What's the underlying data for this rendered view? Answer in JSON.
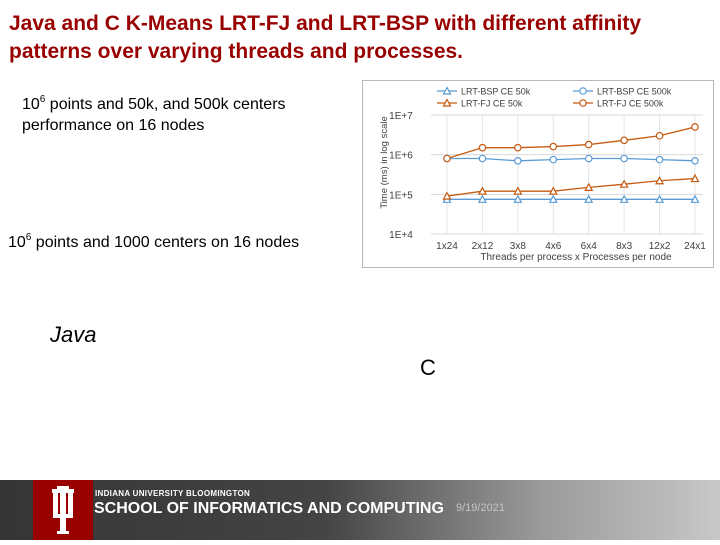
{
  "slide": {
    "title": "Java and C K-Means LRT-FJ and LRT-BSP with different affinity patterns over varying threads and processes.",
    "text1": {
      "base": "10",
      "exp": "6",
      "rest_line1": " points and 50k, and 500k centers",
      "line2": "performance on 16 nodes"
    },
    "text2": {
      "base": "10",
      "exp": "6",
      "rest": " points and 1000 centers on 16 nodes"
    },
    "java_label": "Java",
    "c_label": "C"
  },
  "footer": {
    "university": "INDIANA UNIVERSITY BLOOMINGTON",
    "school": "SCHOOL OF INFORMATICS AND COMPUTING",
    "date": "9/19/2021",
    "logo_icon": "iu-trident-logo",
    "logo_color": "#990000"
  },
  "chart_data": {
    "type": "line",
    "title": "",
    "xlabel": "Threads per process x Processes per node",
    "ylabel": "Time (ms) in log scale",
    "yscale": "log",
    "ylim": [
      10000,
      10000000
    ],
    "yticks": [
      "1E+4",
      "1E+5",
      "1E+6",
      "1E+7"
    ],
    "yticks_values": [
      10000,
      100000,
      1000000,
      10000000
    ],
    "categories": [
      "1x24",
      "2x12",
      "3x8",
      "4x6",
      "6x4",
      "8x3",
      "12x2",
      "24x1"
    ],
    "grid": true,
    "legend_position": "top",
    "series": [
      {
        "name": "LRT-BSP CE 50k",
        "marker": "triangle",
        "color": "#5b9bd5",
        "values": [
          75000,
          75000,
          75000,
          75000,
          75000,
          75000,
          75000,
          75000
        ]
      },
      {
        "name": "LRT-BSP CE 500k",
        "marker": "circle",
        "color": "#5b9bd5",
        "values": [
          800000,
          800000,
          700000,
          750000,
          800000,
          800000,
          750000,
          700000
        ]
      },
      {
        "name": "LRT-FJ CE 50k",
        "marker": "triangle",
        "color": "#c55a11",
        "values": [
          90000,
          120000,
          120000,
          120000,
          150000,
          180000,
          220000,
          250000
        ]
      },
      {
        "name": "LRT-FJ CE 500k",
        "marker": "circle",
        "color": "#c55a11",
        "values": [
          800000,
          1500000,
          1500000,
          1600000,
          1800000,
          2300000,
          3000000,
          5000000
        ]
      }
    ]
  }
}
